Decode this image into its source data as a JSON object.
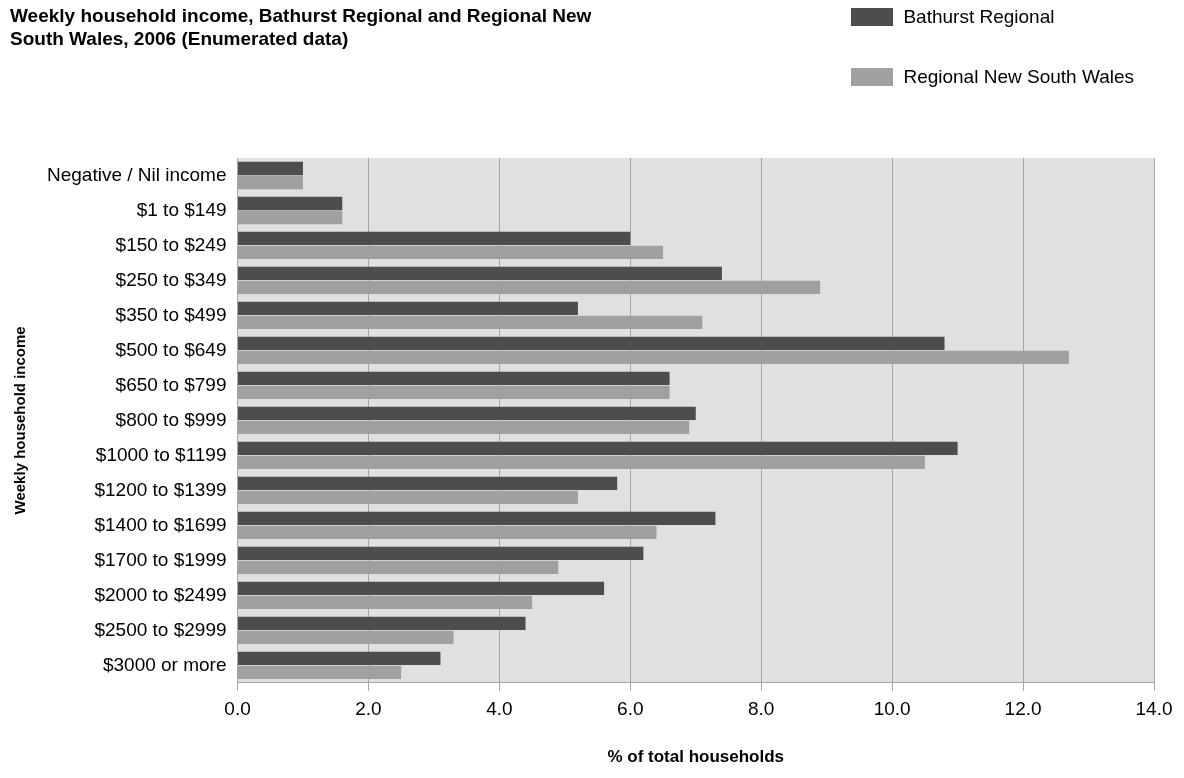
{
  "chart_data": {
    "type": "bar",
    "orientation": "horizontal",
    "title": "Weekly household income, Bathurst Regional and Regional New South Wales, 2006 (Enumerated data)",
    "xlabel": "% of total households",
    "ylabel": "Weekly household income",
    "categories": [
      "Negative / Nil income",
      "$1 to $149",
      "$150 to $249",
      "$250 to $349",
      "$350 to $499",
      "$500 to $649",
      "$650 to $799",
      "$800 to $999",
      "$1000 to $1199",
      "$1200 to $1399",
      "$1400 to $1699",
      "$1700 to $1999",
      "$2000 to $2499",
      "$2500 to $2999",
      "$3000 or more"
    ],
    "series": [
      {
        "name": "Bathurst Regional",
        "color": "#4d4d4d",
        "values": [
          1.0,
          1.6,
          6.0,
          7.4,
          5.2,
          10.8,
          6.6,
          7.0,
          11.0,
          5.8,
          7.3,
          6.2,
          5.6,
          4.4,
          3.1
        ]
      },
      {
        "name": "Regional New South Wales",
        "color": "#a0a0a0",
        "values": [
          1.0,
          1.6,
          6.5,
          8.9,
          7.1,
          12.7,
          6.6,
          6.9,
          10.5,
          5.2,
          6.4,
          4.9,
          4.5,
          3.3,
          2.5
        ]
      }
    ],
    "xlim": [
      0,
      14
    ],
    "xticks": [
      {
        "value": 0,
        "label": "0.0"
      },
      {
        "value": 2,
        "label": "2.0"
      },
      {
        "value": 4,
        "label": "4.0"
      },
      {
        "value": 6,
        "label": "6.0"
      },
      {
        "value": 8,
        "label": "8.0"
      },
      {
        "value": 10,
        "label": "10.0"
      },
      {
        "value": 12,
        "label": "12.0"
      },
      {
        "value": 14,
        "label": "14.0"
      }
    ],
    "grid": "x",
    "legend": "top right"
  }
}
